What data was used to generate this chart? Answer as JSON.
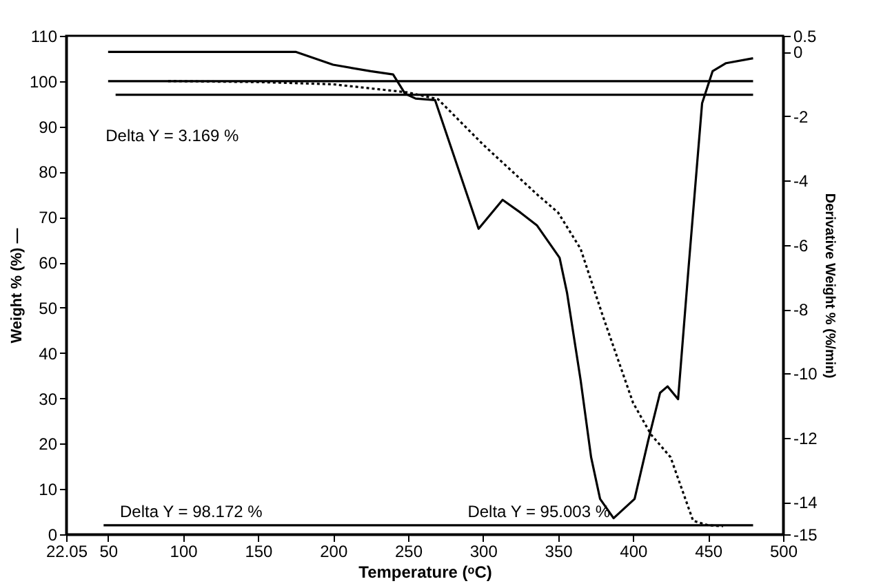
{
  "chart_data": {
    "type": "line",
    "xlabel": "Temperature (ᵒC)",
    "ylabel": "Weight % (%) —",
    "y2label": "Derivative Weight % (%/min)",
    "xlim": [
      22.05,
      500
    ],
    "xticks": [
      22.05,
      50,
      100,
      150,
      200,
      250,
      300,
      350,
      400,
      450,
      500
    ],
    "ylim": [
      0,
      110
    ],
    "yticks": [
      0,
      10,
      20,
      30,
      40,
      50,
      60,
      70,
      80,
      90,
      100,
      110
    ],
    "y2lim": [
      -15,
      0.5
    ],
    "y2ticks": [
      -15,
      -14,
      -12,
      -10,
      -8,
      -6,
      -4,
      -2,
      0,
      0.5
    ],
    "grid": false,
    "series": [
      {
        "color": "#000000",
        "line_style": "dotted",
        "x": [
          90,
          150,
          200,
          250,
          270,
          300,
          336,
          350,
          365,
          380,
          400,
          412,
          425,
          440,
          450,
          460
        ],
        "values": [
          100,
          99.8,
          99.3,
          97.5,
          96,
          86,
          75,
          71,
          63,
          48,
          29,
          22,
          17,
          3,
          2,
          1.8
        ]
      },
      {
        "color": "#000000",
        "line_style": "solid",
        "axis": "y2",
        "x": [
          50,
          175,
          200,
          225,
          240,
          248,
          255,
          268,
          297,
          313,
          325,
          336,
          351,
          356,
          365,
          372,
          378,
          387,
          401,
          410,
          418,
          423,
          430,
          437,
          446,
          453,
          462,
          480
        ],
        "values": [
          0,
          0,
          -0.4,
          -0.6,
          -0.7,
          -1.3,
          -1.45,
          -1.5,
          -5.5,
          -4.6,
          -5.0,
          -5.4,
          -6.4,
          -7.5,
          -10.2,
          -12.6,
          -13.9,
          -14.5,
          -13.9,
          -12.1,
          -10.6,
          -10.4,
          -10.8,
          -6.7,
          -1.6,
          -0.6,
          -0.35,
          -0.2
        ]
      },
      {
        "color": "#000000",
        "line_style": "solid",
        "x": [
          50,
          480
        ],
        "values": [
          100,
          100
        ]
      },
      {
        "color": "#000000",
        "line_style": "solid",
        "x": [
          55,
          480
        ],
        "values": [
          97,
          97
        ]
      },
      {
        "color": "#000000",
        "line_style": "solid",
        "x": [
          47,
          480
        ],
        "values": [
          2,
          2
        ]
      }
    ],
    "annotations": [
      "Delta Y = 3.169 %",
      "Delta Y = 98.172 %",
      "Delta Y = 95.003 %"
    ]
  }
}
